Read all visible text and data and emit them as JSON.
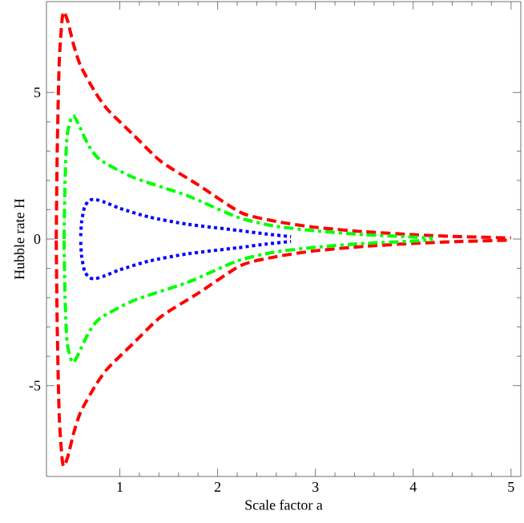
{
  "chart_data": {
    "type": "line",
    "xlabel": "Scale factor a",
    "ylabel": "Hubble rate H",
    "xlim": [
      0.25,
      5.1
    ],
    "ylim": [
      -8.1,
      8.1
    ],
    "xticks": [
      1,
      2,
      3,
      4,
      5
    ],
    "yticks": [
      -5,
      0,
      5
    ],
    "grid": false,
    "marker": "none",
    "series": [
      {
        "color": "#ff0000",
        "line_style": "dashed",
        "x": [
          0.35,
          0.36,
          0.38,
          0.41,
          0.43,
          0.47,
          0.53,
          0.6,
          0.75,
          0.88,
          1.14,
          1.42,
          1.8,
          2.24,
          2.6,
          3,
          3.5,
          4,
          4.5,
          5
        ],
        "values": [
          0,
          3,
          6,
          7.5,
          7.75,
          7.4,
          6.6,
          5.9,
          5,
          4.4,
          3.55,
          2.65,
          1.85,
          0.9,
          0.6,
          0.4,
          0.25,
          0.15,
          0.08,
          0.04
        ]
      },
      {
        "color": "#ff0000",
        "line_style": "dashed",
        "x": [
          0.35,
          0.36,
          0.38,
          0.41,
          0.43,
          0.47,
          0.53,
          0.6,
          0.75,
          0.88,
          1.14,
          1.42,
          1.8,
          2.24,
          2.6,
          3,
          3.5,
          4,
          4.5,
          5
        ],
        "values": [
          -0.05,
          -3,
          -6,
          -7.5,
          -7.75,
          -7.4,
          -6.6,
          -5.9,
          -5,
          -4.4,
          -3.55,
          -2.65,
          -1.85,
          -0.9,
          -0.6,
          -0.4,
          -0.25,
          -0.15,
          -0.08,
          -0.04
        ]
      },
      {
        "color": "#00ff00",
        "line_style": "dashdot",
        "x": [
          0.43,
          0.44,
          0.46,
          0.5,
          0.53,
          0.58,
          0.68,
          0.8,
          1.14,
          1.69,
          2.2,
          2.57,
          3,
          3.5,
          4,
          4.2
        ],
        "values": [
          0,
          2,
          3.5,
          4.1,
          4.2,
          3.9,
          3.2,
          2.7,
          2.1,
          1.48,
          0.75,
          0.45,
          0.28,
          0.15,
          0.07,
          0.03
        ]
      },
      {
        "color": "#00ff00",
        "line_style": "dashdot",
        "x": [
          0.43,
          0.44,
          0.46,
          0.5,
          0.53,
          0.58,
          0.68,
          0.8,
          1.14,
          1.69,
          2.2,
          2.57,
          3,
          3.5,
          4,
          4.2
        ],
        "values": [
          -0.05,
          -2,
          -3.5,
          -4.1,
          -4.2,
          -3.9,
          -3.2,
          -2.7,
          -2.1,
          -1.48,
          -0.75,
          -0.45,
          -0.28,
          -0.15,
          -0.07,
          -0.03
        ]
      },
      {
        "color": "#0000ff",
        "line_style": "dotted",
        "x": [
          0.6,
          0.61,
          0.64,
          0.69,
          0.75,
          0.85,
          1,
          1.3,
          1.7,
          2.2,
          2.5,
          2.75
        ],
        "values": [
          0.1,
          0.6,
          1.1,
          1.32,
          1.35,
          1.25,
          1.05,
          0.75,
          0.5,
          0.3,
          0.17,
          0.08
        ]
      },
      {
        "color": "#0000ff",
        "line_style": "dotted",
        "x": [
          0.6,
          0.61,
          0.64,
          0.69,
          0.75,
          0.85,
          1,
          1.3,
          1.7,
          2.2,
          2.5,
          2.75
        ],
        "values": [
          -0.1,
          -0.6,
          -1.1,
          -1.32,
          -1.35,
          -1.25,
          -1.05,
          -0.75,
          -0.5,
          -0.3,
          -0.17,
          -0.08
        ]
      }
    ]
  }
}
